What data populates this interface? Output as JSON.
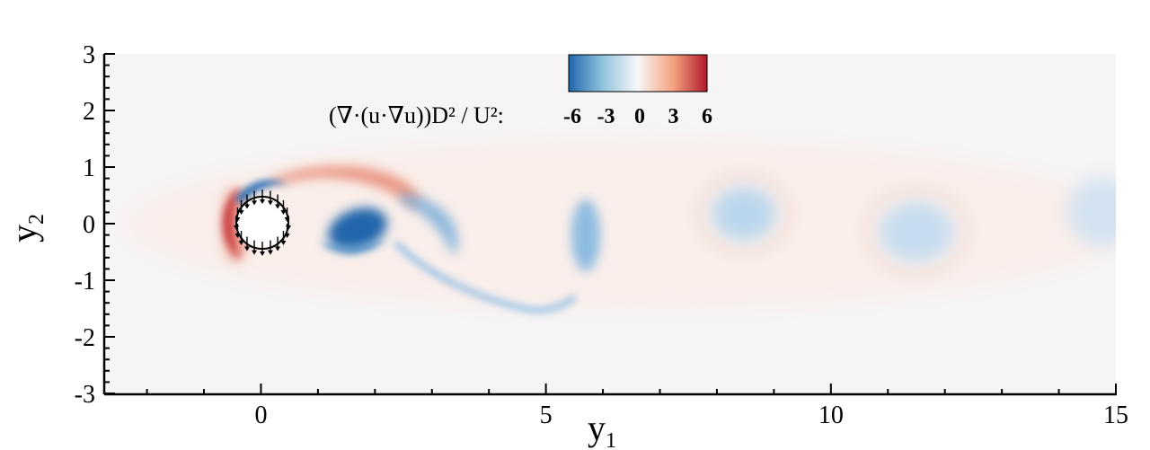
{
  "chart_data": {
    "type": "heatmap",
    "title": "",
    "xlabel": "y",
    "xlabel_sub": "1",
    "ylabel": "y",
    "ylabel_sub": "2",
    "xlim": [
      -2.75,
      15
    ],
    "ylim": [
      -3,
      3
    ],
    "x_ticks": [
      0,
      5,
      10,
      15
    ],
    "x_tick_labels": [
      "0",
      "5",
      "10",
      "15"
    ],
    "y_ticks": [
      3,
      2,
      1,
      0,
      -1,
      -2,
      -3
    ],
    "y_tick_labels": [
      "3",
      "2",
      "1",
      "0",
      "-1",
      "-2",
      "-3"
    ],
    "colorbar": {
      "label": "(∇·(u·∇u))D² / U²:",
      "range": [
        -6,
        6
      ],
      "ticks": [
        -6,
        -3,
        0,
        3,
        6
      ],
      "tick_labels": [
        "-6",
        "-3",
        "0",
        "3",
        "6"
      ],
      "colors": [
        "#2166ac",
        "#92c5de",
        "#f7f7f7",
        "#f4a582",
        "#b2182b"
      ]
    },
    "cylinder": {
      "center": [
        0,
        0
      ],
      "diameter": 1
    },
    "features": [
      {
        "kind": "positive",
        "x": -0.75,
        "y": 0.1,
        "strength": 6
      },
      {
        "kind": "negative",
        "x": -0.3,
        "y": 0.55,
        "strength": -5
      },
      {
        "kind": "positive",
        "x": 2.0,
        "y": 0.55,
        "strength": 4
      },
      {
        "kind": "negative",
        "x": 1.7,
        "y": -0.1,
        "strength": -6
      },
      {
        "kind": "negative",
        "x": 3.3,
        "y": -0.1,
        "strength": -2.5
      },
      {
        "kind": "negative",
        "x": 5.7,
        "y": -0.2,
        "strength": -2
      },
      {
        "kind": "negative",
        "x": 8.5,
        "y": 0.2,
        "strength": -1.2
      },
      {
        "kind": "negative",
        "x": 11.5,
        "y": -0.15,
        "strength": -1
      },
      {
        "kind": "negative",
        "x": 14.8,
        "y": 0.2,
        "strength": -0.7
      }
    ]
  }
}
